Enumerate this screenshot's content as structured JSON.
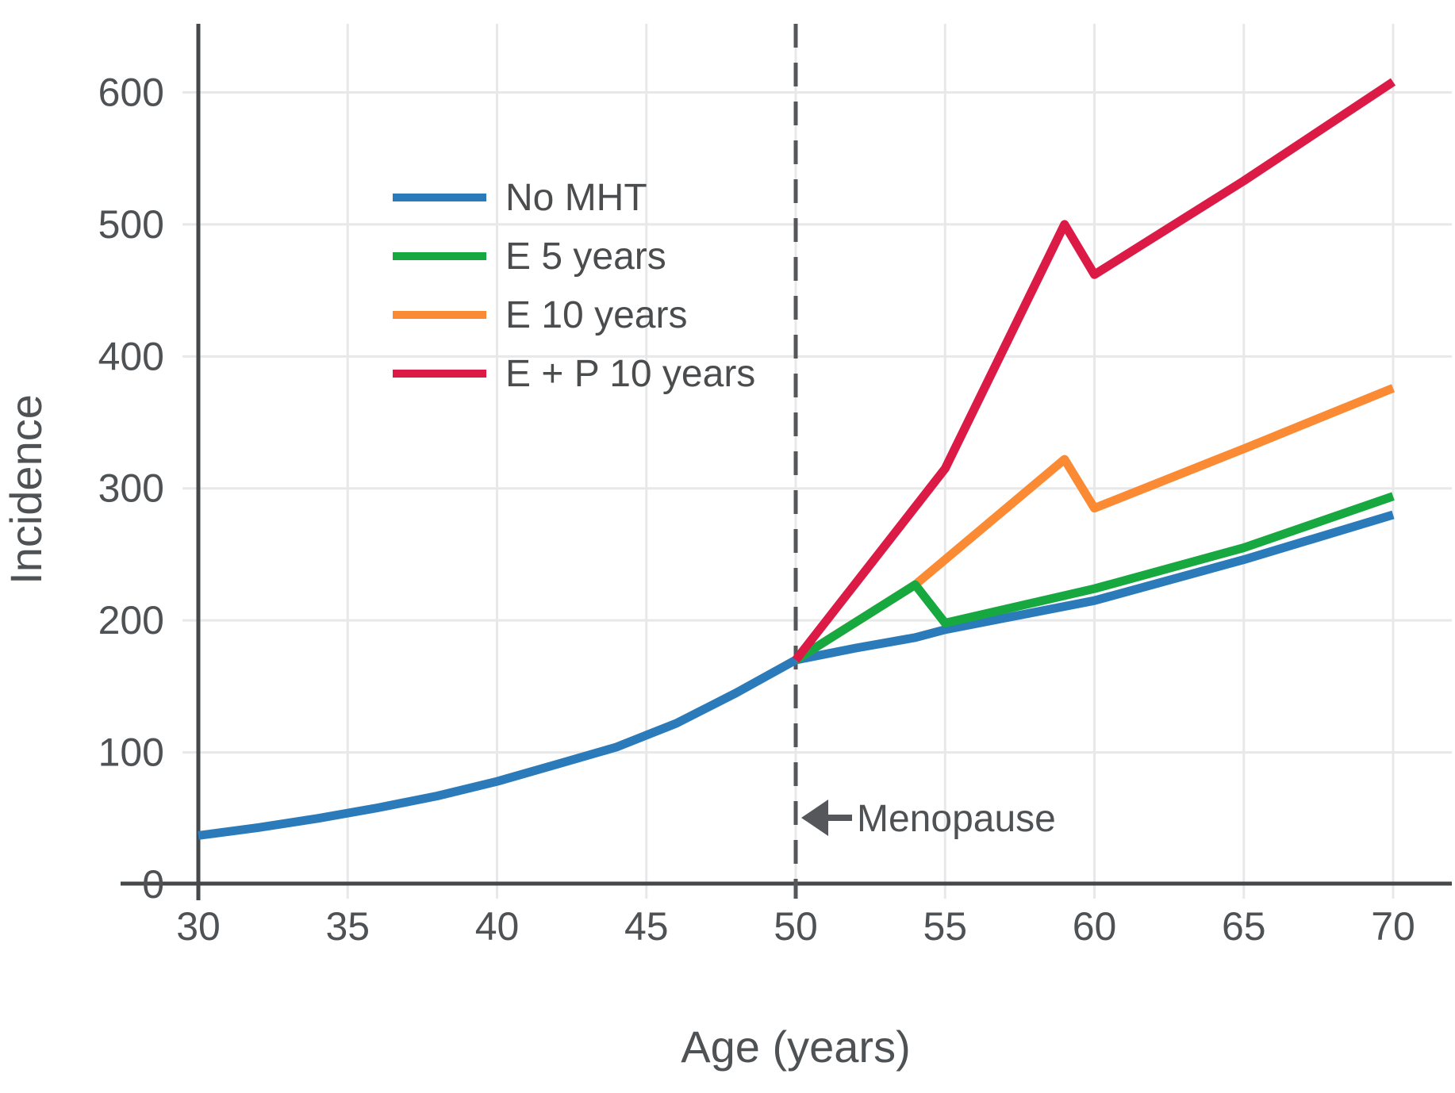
{
  "chart_data": {
    "type": "line",
    "title": "",
    "xlabel": "Age (years)",
    "ylabel": "Incidence",
    "x_ticks": [
      30,
      35,
      40,
      45,
      50,
      55,
      60,
      65,
      70
    ],
    "y_ticks": [
      0,
      100,
      200,
      300,
      400,
      500,
      600
    ],
    "xlim": [
      30,
      72
    ],
    "ylim": [
      0,
      652
    ],
    "grid": true,
    "legend_position": "upper-left-inside",
    "colors": {
      "no_mht": "#2b7bba",
      "e_5_years": "#17a840",
      "e_10_years": "#fb8a34",
      "e_p_10_years": "#dc1a46",
      "axis": "#45484a",
      "gridline": "#e8e8e8",
      "reference_line": "#55575a",
      "text": "#4f5254"
    },
    "series": [
      {
        "name": "No MHT",
        "color": "#2b7bba",
        "points": [
          [
            30,
            37
          ],
          [
            32,
            43
          ],
          [
            34,
            50
          ],
          [
            36,
            58
          ],
          [
            38,
            67
          ],
          [
            40,
            78
          ],
          [
            42,
            91
          ],
          [
            44,
            104
          ],
          [
            45,
            113
          ],
          [
            46,
            122
          ],
          [
            48,
            145
          ],
          [
            50,
            170
          ],
          [
            52,
            179
          ],
          [
            54,
            187
          ],
          [
            55,
            193
          ],
          [
            60,
            215
          ],
          [
            65,
            246
          ],
          [
            70,
            280
          ]
        ]
      },
      {
        "name": "E 5 years",
        "color": "#17a840",
        "points": [
          [
            50,
            170
          ],
          [
            54,
            227
          ],
          [
            55,
            198
          ],
          [
            60,
            224
          ],
          [
            65,
            255
          ],
          [
            70,
            294
          ]
        ]
      },
      {
        "name": "E 10 years",
        "color": "#fb8a34",
        "points": [
          [
            50,
            170
          ],
          [
            54,
            227
          ],
          [
            59,
            322
          ],
          [
            60,
            285
          ],
          [
            65,
            330
          ],
          [
            70,
            376
          ]
        ]
      },
      {
        "name": "E + P 10 years",
        "color": "#dc1a46",
        "points": [
          [
            50,
            170
          ],
          [
            55,
            315
          ],
          [
            59,
            500
          ],
          [
            60,
            462
          ],
          [
            65,
            533
          ],
          [
            70,
            608
          ]
        ]
      }
    ],
    "reference_line": {
      "x": 50,
      "style": "dashed"
    },
    "annotation": {
      "text": "Menopause",
      "arrow": "left-arrow",
      "at_x": 50
    }
  }
}
